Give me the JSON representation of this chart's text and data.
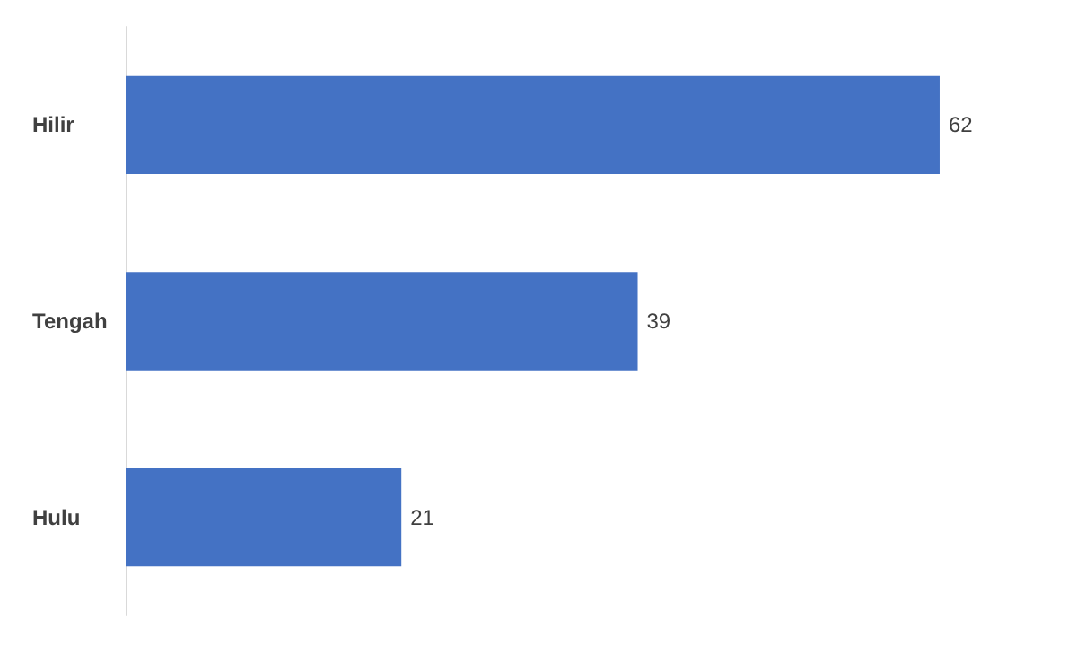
{
  "chart_data": {
    "type": "bar",
    "orientation": "horizontal",
    "categories": [
      "Hilir",
      "Tengah",
      "Hulu"
    ],
    "values": [
      62,
      39,
      21
    ],
    "color": "#4472c4",
    "data_labels": true
  }
}
